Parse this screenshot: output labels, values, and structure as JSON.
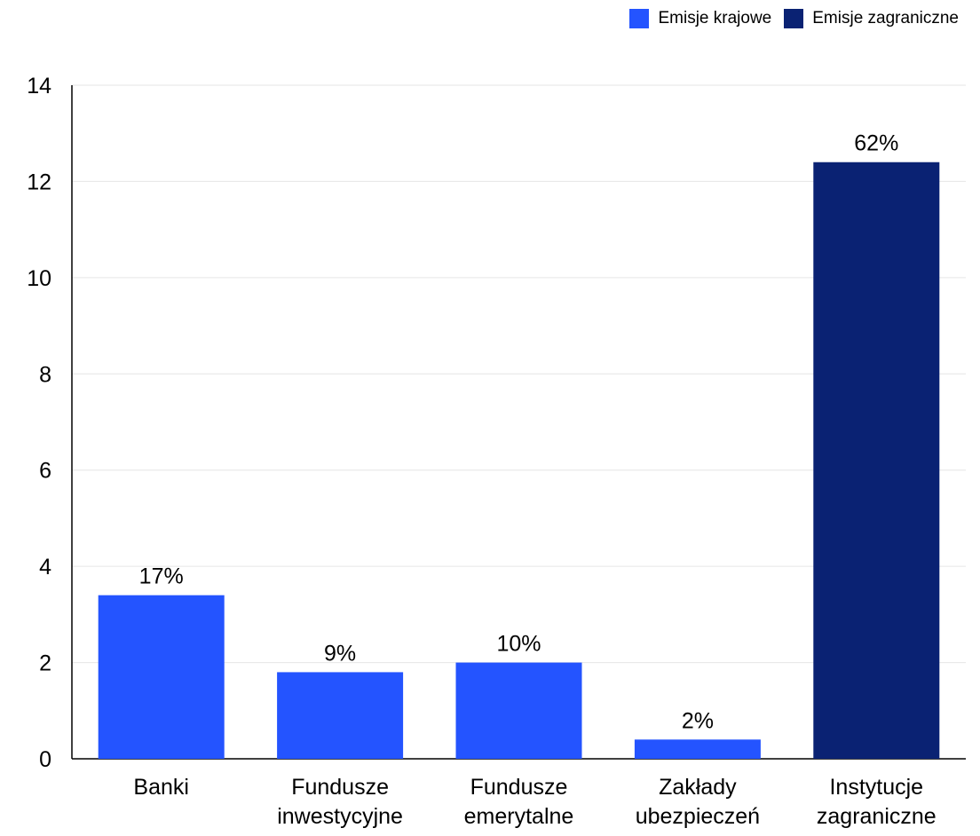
{
  "colors": {
    "domestic": "#2454ff",
    "foreign": "#0a2273",
    "grid": "#e6e6e6",
    "axis": "#000000"
  },
  "legend": [
    {
      "label": "Emisje krajowe",
      "color": "#2454ff"
    },
    {
      "label": "Emisje zagraniczne",
      "color": "#0a2273"
    }
  ],
  "chart_data": {
    "type": "bar",
    "categories": [
      [
        "Banki"
      ],
      [
        "Fundusze",
        "inwestycyjne"
      ],
      [
        "Fundusze",
        "emerytalne"
      ],
      [
        "Zakłady",
        "ubezpieczeń"
      ],
      [
        "Instytucje",
        "zagraniczne"
      ]
    ],
    "values": [
      3.4,
      1.8,
      2.0,
      0.4,
      12.4
    ],
    "series_index": [
      0,
      0,
      0,
      0,
      1
    ],
    "data_labels": [
      "17%",
      "9%",
      "10%",
      "2%",
      "62%"
    ],
    "series": [
      {
        "name": "Emisje krajowe",
        "color": "#2454ff"
      },
      {
        "name": "Emisje zagraniczne",
        "color": "#0a2273"
      }
    ],
    "ylim": [
      0,
      14
    ],
    "yticks": [
      0,
      2,
      4,
      6,
      8,
      10,
      12,
      14
    ],
    "grid": true,
    "legend_position": "top-right",
    "title": "",
    "xlabel": "",
    "ylabel": ""
  }
}
